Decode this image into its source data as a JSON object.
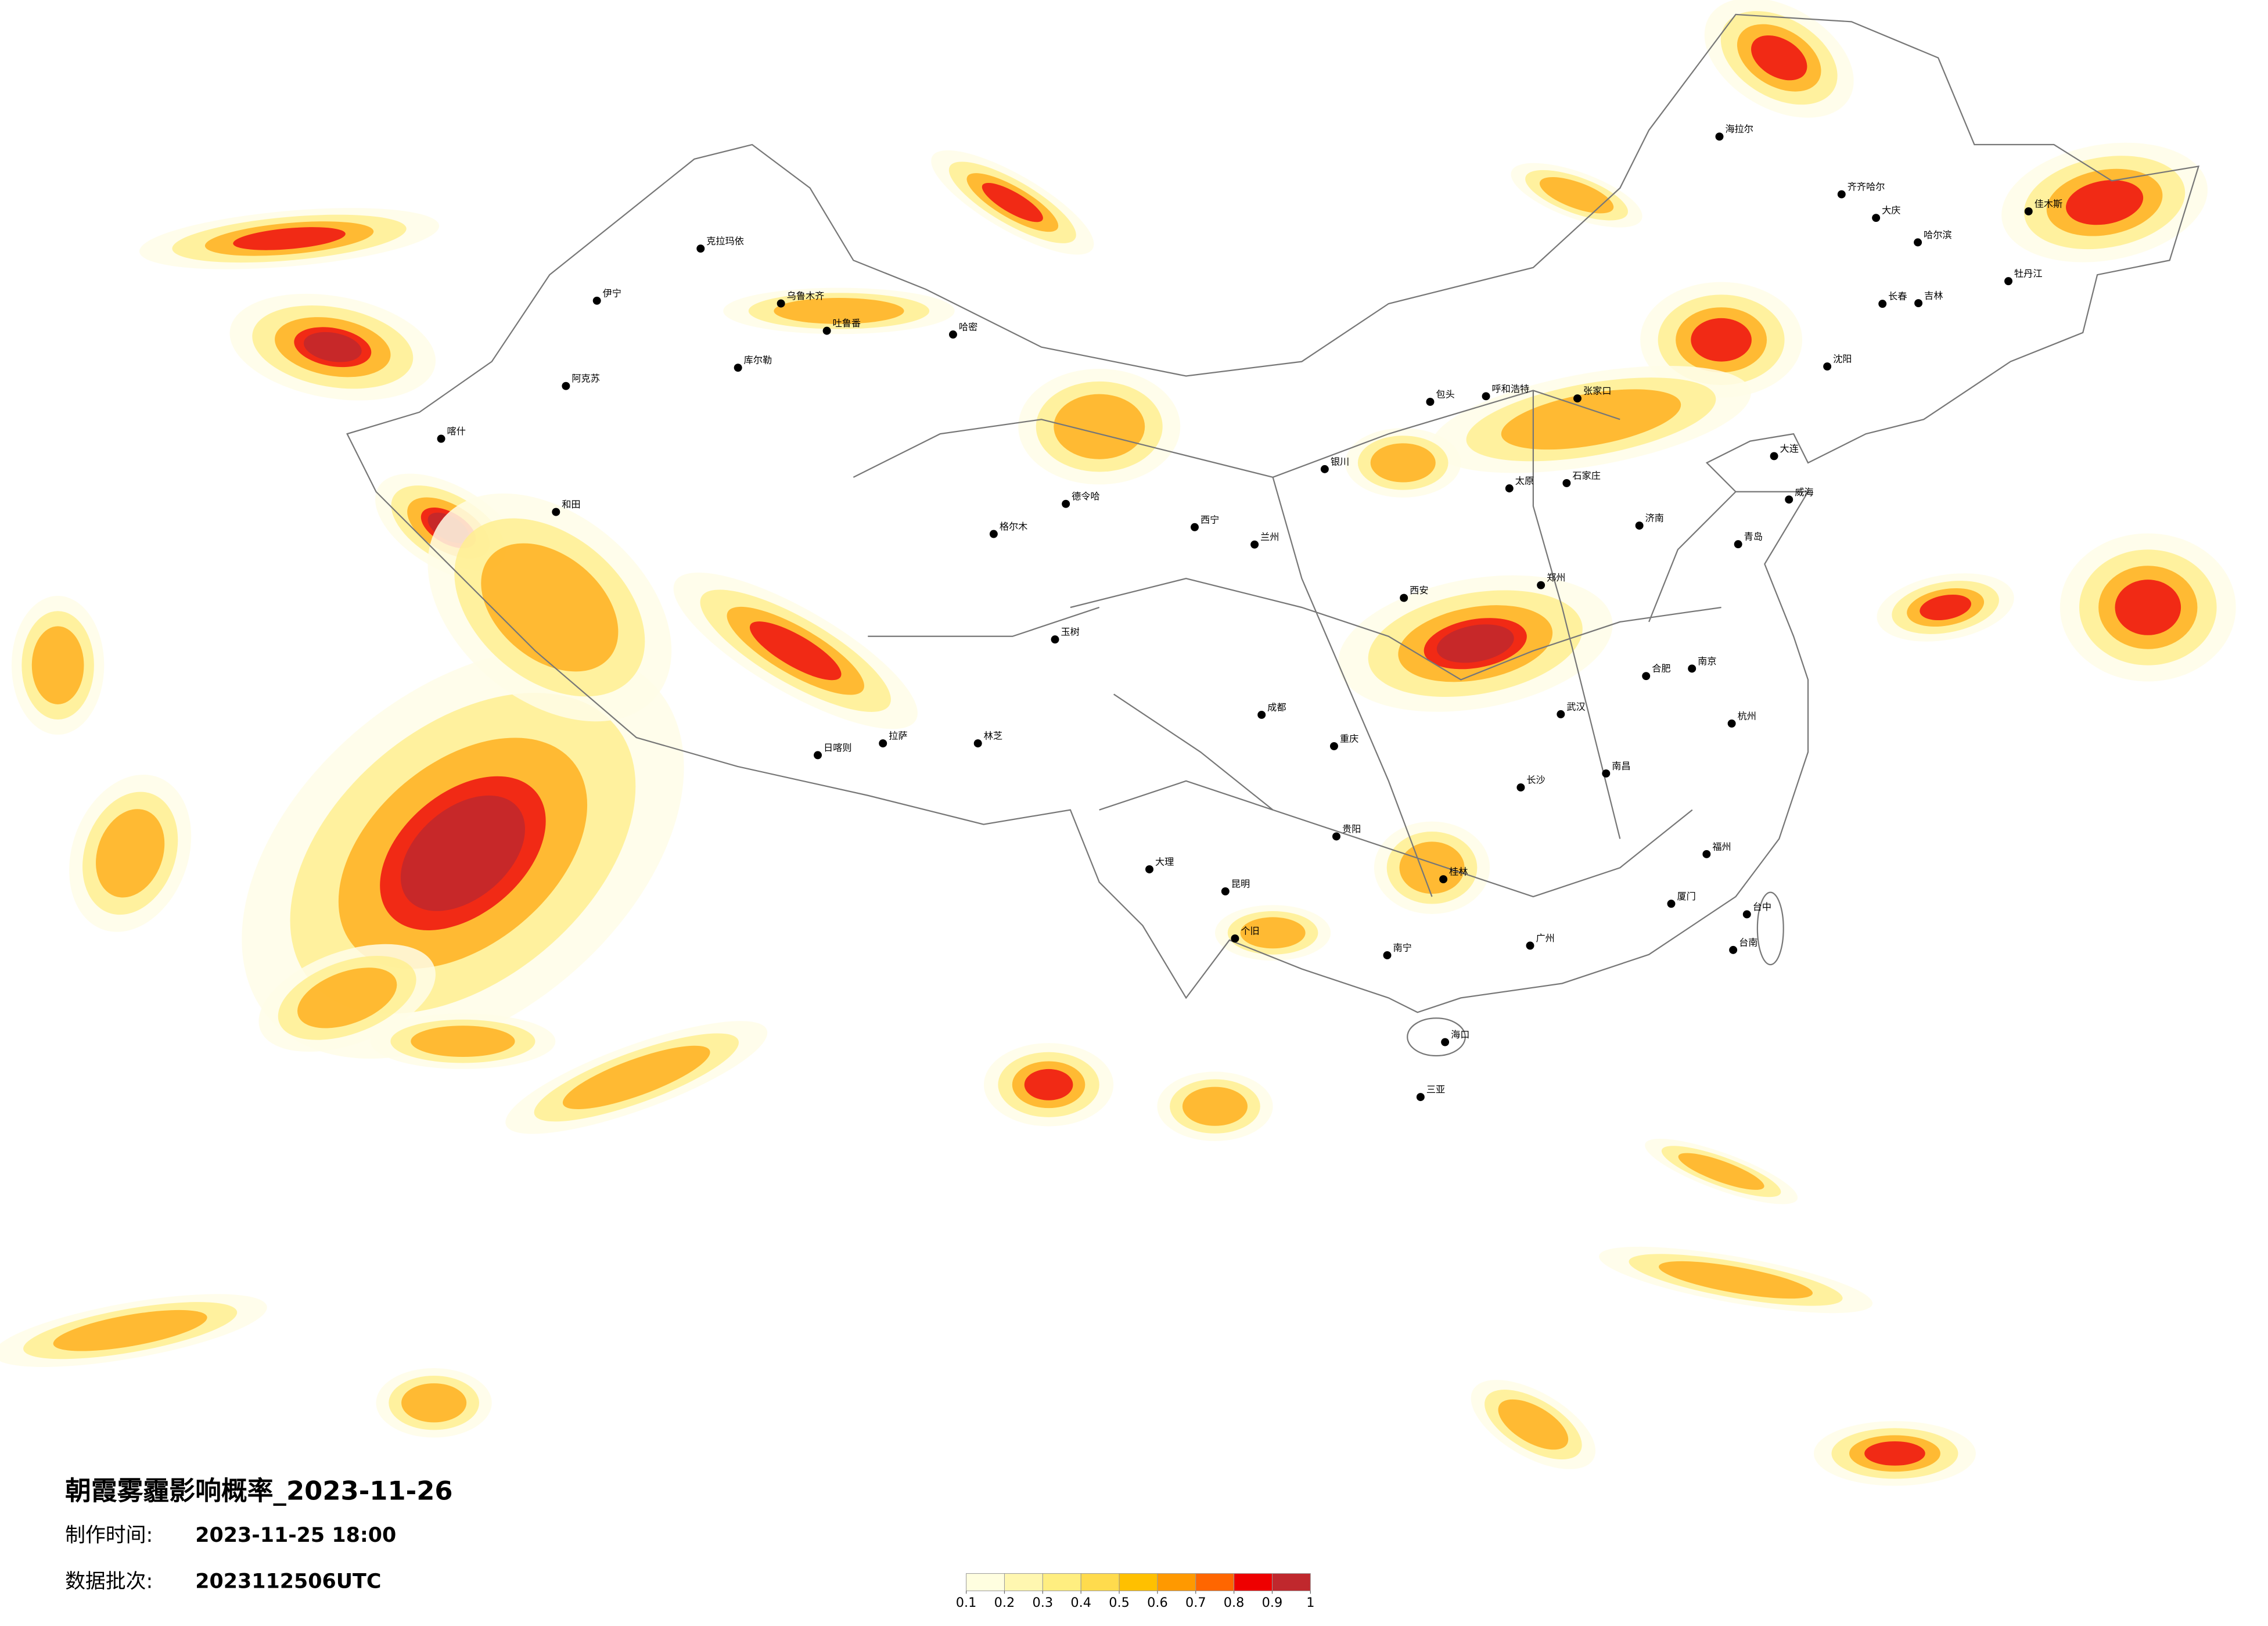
{
  "title": "朝霞雾霾影响概率_2023-11-26",
  "production_time": {
    "label": "制作时间:",
    "value": "2023-11-25 18:00"
  },
  "data_batch": {
    "label": "数据批次:",
    "value": "2023112506UTC"
  },
  "legend": {
    "colors": [
      "#fffee0",
      "#fff7b0",
      "#ffee80",
      "#ffdb4d",
      "#ffc000",
      "#ff9900",
      "#ff6600",
      "#ee0000",
      "#c0282d"
    ],
    "ticks": [
      0.1,
      0.2,
      0.3,
      0.4,
      0.5,
      0.6,
      0.7,
      0.8,
      0.9,
      1
    ]
  },
  "cities": [
    {
      "name": "喀什",
      "lon": 75.99,
      "lat": 39.47
    },
    {
      "name": "和田",
      "lon": 79.92,
      "lat": 37.11
    },
    {
      "name": "阿克苏",
      "lon": 80.26,
      "lat": 41.17
    },
    {
      "name": "库尔勒",
      "lon": 86.15,
      "lat": 41.76
    },
    {
      "name": "乌鲁木齐",
      "lon": 87.62,
      "lat": 43.83
    },
    {
      "name": "吐鲁番",
      "lon": 89.19,
      "lat": 42.95
    },
    {
      "name": "哈密",
      "lon": 93.51,
      "lat": 42.83
    },
    {
      "name": "克拉玛依",
      "lon": 84.87,
      "lat": 45.6
    },
    {
      "name": "伊宁",
      "lon": 81.32,
      "lat": 43.92
    },
    {
      "name": "格尔木",
      "lon": 94.9,
      "lat": 36.4
    },
    {
      "name": "德令哈",
      "lon": 97.37,
      "lat": 37.37
    },
    {
      "name": "西宁",
      "lon": 101.78,
      "lat": 36.62
    },
    {
      "name": "兰州",
      "lon": 103.83,
      "lat": 36.06
    },
    {
      "name": "银川",
      "lon": 106.23,
      "lat": 38.49
    },
    {
      "name": "呼和浩特",
      "lon": 111.75,
      "lat": 40.84
    },
    {
      "name": "包头",
      "lon": 109.84,
      "lat": 40.66
    },
    {
      "name": "太原",
      "lon": 112.55,
      "lat": 37.87
    },
    {
      "name": "石家庄",
      "lon": 114.51,
      "lat": 38.04
    },
    {
      "name": "张家口",
      "lon": 114.88,
      "lat": 40.77
    },
    {
      "name": "沈阳",
      "lon": 123.43,
      "lat": 41.8
    },
    {
      "name": "长春",
      "lon": 125.32,
      "lat": 43.82
    },
    {
      "name": "吉林",
      "lon": 126.55,
      "lat": 43.84
    },
    {
      "name": "哈尔滨",
      "lon": 126.53,
      "lat": 45.8
    },
    {
      "name": "齐齐哈尔",
      "lon": 123.92,
      "lat": 47.35
    },
    {
      "name": "海拉尔",
      "lon": 119.74,
      "lat": 49.21
    },
    {
      "name": "大庆",
      "lon": 125.1,
      "lat": 46.59
    },
    {
      "name": "牡丹江",
      "lon": 129.63,
      "lat": 44.55
    },
    {
      "name": "佳木斯",
      "lon": 130.32,
      "lat": 46.8
    },
    {
      "name": "大连",
      "lon": 121.61,
      "lat": 38.91
    },
    {
      "name": "威海",
      "lon": 122.12,
      "lat": 37.51
    },
    {
      "name": "济南",
      "lon": 117.0,
      "lat": 36.67
    },
    {
      "name": "青岛",
      "lon": 120.38,
      "lat": 36.07
    },
    {
      "name": "郑州",
      "lon": 113.63,
      "lat": 34.75
    },
    {
      "name": "西安",
      "lon": 108.94,
      "lat": 34.34
    },
    {
      "name": "成都",
      "lon": 104.07,
      "lat": 30.57
    },
    {
      "name": "重庆",
      "lon": 106.55,
      "lat": 29.56
    },
    {
      "name": "贵阳",
      "lon": 106.63,
      "lat": 26.65
    },
    {
      "name": "昆明",
      "lon": 102.83,
      "lat": 24.88
    },
    {
      "name": "大理",
      "lon": 100.23,
      "lat": 25.59
    },
    {
      "name": "个旧",
      "lon": 103.16,
      "lat": 23.36
    },
    {
      "name": "南宁",
      "lon": 108.37,
      "lat": 22.82
    },
    {
      "name": "桂林",
      "lon": 110.29,
      "lat": 25.27
    },
    {
      "name": "广州",
      "lon": 113.26,
      "lat": 23.13
    },
    {
      "name": "海口",
      "lon": 110.35,
      "lat": 20.02
    },
    {
      "name": "三亚",
      "lon": 109.51,
      "lat": 18.25
    },
    {
      "name": "福州",
      "lon": 119.3,
      "lat": 26.08
    },
    {
      "name": "厦门",
      "lon": 118.09,
      "lat": 24.48
    },
    {
      "name": "台中",
      "lon": 120.68,
      "lat": 24.14
    },
    {
      "name": "台南",
      "lon": 120.21,
      "lat": 22.99
    },
    {
      "name": "杭州",
      "lon": 120.16,
      "lat": 30.29
    },
    {
      "name": "南京",
      "lon": 118.8,
      "lat": 32.06
    },
    {
      "name": "合肥",
      "lon": 117.23,
      "lat": 31.82
    },
    {
      "name": "武汉",
      "lon": 114.31,
      "lat": 30.59
    },
    {
      "name": "长沙",
      "lon": 112.94,
      "lat": 28.23
    },
    {
      "name": "南昌",
      "lon": 115.86,
      "lat": 28.68
    },
    {
      "name": "拉萨",
      "lon": 91.11,
      "lat": 29.65
    },
    {
      "name": "日喀则",
      "lon": 88.88,
      "lat": 29.27
    },
    {
      "name": "林芝",
      "lon": 94.36,
      "lat": 29.65
    },
    {
      "name": "玉树",
      "lon": 97.0,
      "lat": 33.0
    }
  ]
}
